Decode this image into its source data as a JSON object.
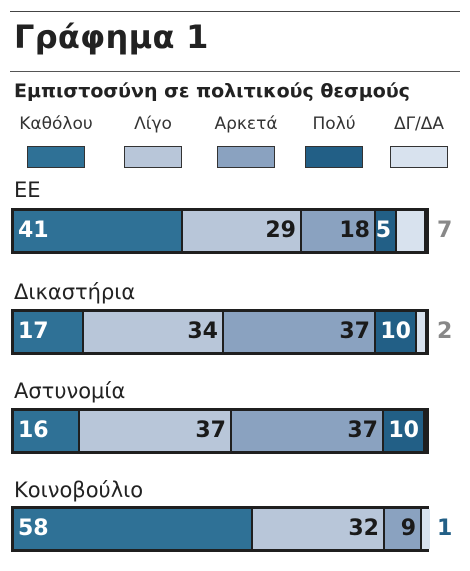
{
  "title": "Γράφημα 1",
  "chart_data": {
    "type": "bar",
    "orientation": "horizontal",
    "stacked": true,
    "title": "Εμπιστοσύνη σε πολιτικούς θεσμούς",
    "categories": [
      "ΕΕ",
      "Δικαστήρια",
      "Αστυνομία",
      "Κοινοβούλιο"
    ],
    "series": [
      {
        "name": "Καθόλου",
        "color": "#2f7196",
        "values": [
          41,
          17,
          16,
          58
        ]
      },
      {
        "name": "Λίγο",
        "color": "#b8c6d9",
        "values": [
          29,
          34,
          37,
          32
        ]
      },
      {
        "name": "Αρκετά",
        "color": "#8aa2c0",
        "values": [
          18,
          37,
          37,
          9
        ]
      },
      {
        "name": "Πολύ",
        "color": "#225f86",
        "values": [
          5,
          10,
          10,
          0
        ]
      },
      {
        "name": "ΔΓ/ΔΑ",
        "color": "#d8e2ee",
        "values": [
          7,
          2,
          0,
          1
        ]
      }
    ],
    "outside_labels": [
      {
        "text": "7",
        "color": "#888888"
      },
      {
        "text": "2",
        "color": "#888888"
      },
      {
        "text": "",
        "color": "#888888"
      },
      {
        "text": "1",
        "color": "#225f86"
      }
    ],
    "xlim": [
      0,
      100
    ],
    "legend": "top",
    "grid": false
  }
}
